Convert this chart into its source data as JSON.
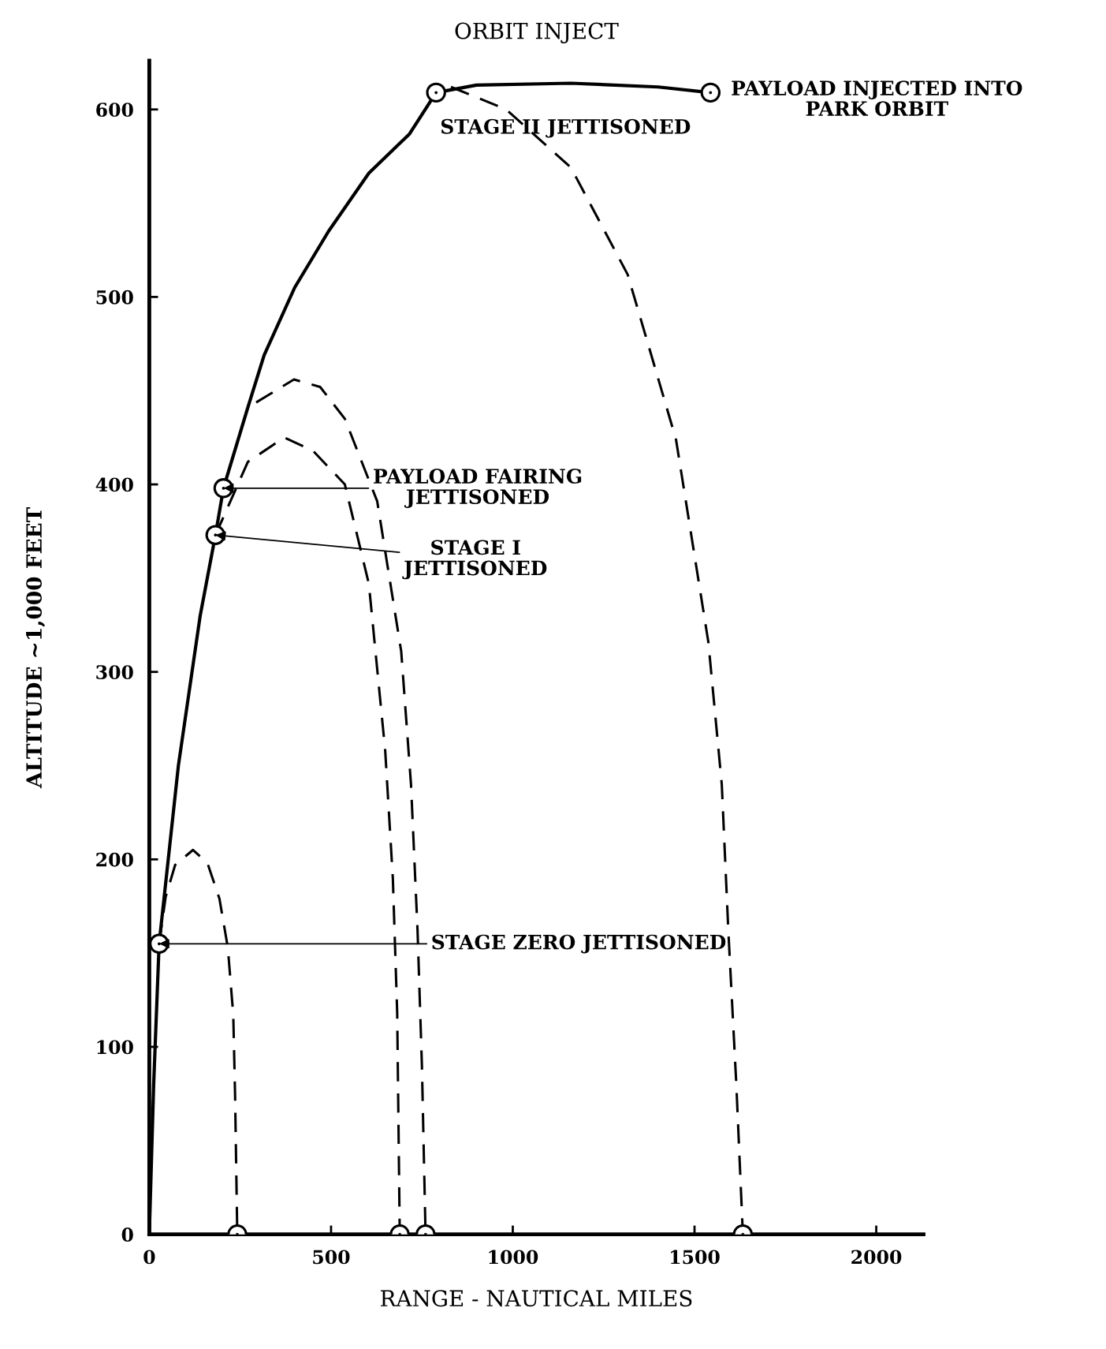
{
  "chart_data": {
    "type": "line",
    "title": "ORBIT INJECT",
    "xlabel": "RANGE - NAUTICAL MILES",
    "ylabel": "ALTITUDE ~1,000 FEET",
    "xlim": [
      0,
      2130
    ],
    "ylim": [
      0,
      626
    ],
    "xticks": [
      0,
      500,
      1000,
      1500,
      2000
    ],
    "yticks": [
      0,
      100,
      200,
      300,
      400,
      500,
      600
    ],
    "grid": false,
    "series": [
      {
        "line_style": "solid",
        "color": "#000000",
        "x": [
          0,
          12,
          27,
          80,
          140,
          182,
          204,
          271,
          316,
          400,
          493,
          604,
          716,
          789,
          900,
          1160,
          1400,
          1544
        ],
        "values": [
          0,
          80,
          155,
          250,
          330,
          373,
          398,
          441,
          469,
          505,
          535,
          566,
          587,
          609,
          613,
          614,
          612,
          609
        ]
      },
      {
        "type": "line",
        "line_style": "dashed",
        "color": "#000000",
        "x": [
          27,
          45,
          71,
          120,
          160,
          193,
          216,
          231,
          236,
          242
        ],
        "values": [
          155,
          180,
          197,
          205,
          198,
          179,
          153,
          117,
          74,
          0
        ]
      },
      {
        "type": "line",
        "line_style": "dashed",
        "color": "#000000",
        "x": [
          182,
          271,
          371,
          450,
          538,
          604,
          649,
          670,
          682,
          689
        ],
        "values": [
          373,
          412,
          425,
          418,
          400,
          347,
          258,
          190,
          118,
          0
        ]
      },
      {
        "type": "line",
        "line_style": "dashed",
        "color": "#000000",
        "x": [
          204,
          271,
          398,
          470,
          538,
          627,
          693,
          720,
          738,
          750,
          760
        ],
        "values": [
          398,
          441,
          456,
          452,
          435,
          391,
          311,
          240,
          162,
          90,
          0
        ]
      },
      {
        "type": "line",
        "line_style": "dashed",
        "color": "#000000",
        "x": [
          830,
          982,
          1160,
          1316,
          1449,
          1538,
          1575,
          1593,
          1615,
          1633
        ],
        "values": [
          612,
          600,
          569,
          512,
          424,
          316,
          240,
          162,
          80,
          0
        ]
      },
      {
        "type": "scatter",
        "marker": "circle",
        "color": "#000000",
        "x": [
          27,
          182,
          204,
          789,
          1544,
          242,
          689,
          760,
          1633
        ],
        "values": [
          155,
          373,
          398,
          609,
          609,
          0,
          0,
          0,
          0
        ]
      }
    ],
    "annotations": [
      {
        "text": "PAYLOAD FAIRING\nJETTISONED",
        "x": 204,
        "y": 398
      },
      {
        "text": "STAGE I\nJETTISONED",
        "x": 182,
        "y": 373
      },
      {
        "text": "STAGE ZERO JETTISONED",
        "x": 27,
        "y": 155
      },
      {
        "text": "STAGE II JETTISONED",
        "x": 789,
        "y": 609
      },
      {
        "text": "PAYLOAD INJECTED INTO\nPARK ORBIT",
        "x": 1544,
        "y": 609
      }
    ]
  }
}
